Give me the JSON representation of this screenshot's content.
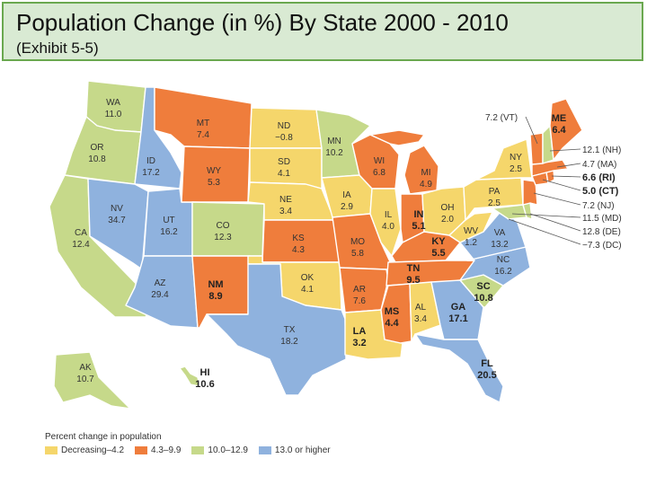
{
  "title": "Population Change (in %) By State 2000 - 2010",
  "subtitle": "(Exhibit 5-5)",
  "colors": {
    "decreasing": "#f5d66b",
    "mid": "#ef7d3c",
    "high": "#c6d98a",
    "top": "#8fb2de",
    "border": "#6aa84f",
    "title_bg": "#d9ead3"
  },
  "legend": {
    "title": "Percent change in population",
    "items": [
      {
        "label": "Decreasing–4.2",
        "color": "#f5d66b"
      },
      {
        "label": "4.3–9.9",
        "color": "#ef7d3c"
      },
      {
        "label": "10.0–12.9",
        "color": "#c6d98a"
      },
      {
        "label": "13.0 or higher",
        "color": "#8fb2de"
      }
    ]
  },
  "states": [
    {
      "code": "WA",
      "value": "11.0",
      "cat": "high"
    },
    {
      "code": "OR",
      "value": "10.8",
      "cat": "high"
    },
    {
      "code": "CA",
      "value": "12.4",
      "cat": "high"
    },
    {
      "code": "ID",
      "value": "17.2",
      "cat": "top"
    },
    {
      "code": "NV",
      "value": "34.7",
      "cat": "top"
    },
    {
      "code": "UT",
      "value": "16.2",
      "cat": "top"
    },
    {
      "code": "AZ",
      "value": "29.4",
      "cat": "top"
    },
    {
      "code": "MT",
      "value": "7.4",
      "cat": "mid"
    },
    {
      "code": "WY",
      "value": "5.3",
      "cat": "mid"
    },
    {
      "code": "CO",
      "value": "12.3",
      "cat": "high"
    },
    {
      "code": "NM",
      "value": "8.9",
      "cat": "mid"
    },
    {
      "code": "ND",
      "value": "−0.8",
      "cat": "decreasing"
    },
    {
      "code": "SD",
      "value": "4.1",
      "cat": "decreasing"
    },
    {
      "code": "NE",
      "value": "3.4",
      "cat": "decreasing"
    },
    {
      "code": "KS",
      "value": "4.3",
      "cat": "mid"
    },
    {
      "code": "OK",
      "value": "4.1",
      "cat": "decreasing"
    },
    {
      "code": "TX",
      "value": "18.2",
      "cat": "top"
    },
    {
      "code": "MN",
      "value": "10.2",
      "cat": "high"
    },
    {
      "code": "IA",
      "value": "2.9",
      "cat": "decreasing"
    },
    {
      "code": "MO",
      "value": "5.8",
      "cat": "mid"
    },
    {
      "code": "AR",
      "value": "7.6",
      "cat": "mid"
    },
    {
      "code": "LA",
      "value": "3.2",
      "cat": "decreasing"
    },
    {
      "code": "WI",
      "value": "6.8",
      "cat": "mid"
    },
    {
      "code": "IL",
      "value": "4.0",
      "cat": "decreasing"
    },
    {
      "code": "MI",
      "value": "4.9",
      "cat": "mid"
    },
    {
      "code": "IN",
      "value": "5.1",
      "cat": "mid"
    },
    {
      "code": "OH",
      "value": "2.0",
      "cat": "decreasing"
    },
    {
      "code": "KY",
      "value": "5.5",
      "cat": "mid"
    },
    {
      "code": "TN",
      "value": "9.5",
      "cat": "mid"
    },
    {
      "code": "MS",
      "value": "4.4",
      "cat": "mid"
    },
    {
      "code": "AL",
      "value": "3.4",
      "cat": "decreasing"
    },
    {
      "code": "GA",
      "value": "17.1",
      "cat": "top"
    },
    {
      "code": "FL",
      "value": "20.5",
      "cat": "top"
    },
    {
      "code": "SC",
      "value": "10.8",
      "cat": "high"
    },
    {
      "code": "NC",
      "value": "16.2",
      "cat": "top"
    },
    {
      "code": "VA",
      "value": "13.2",
      "cat": "top"
    },
    {
      "code": "WV",
      "value": "1.2",
      "cat": "decreasing"
    },
    {
      "code": "PA",
      "value": "2.5",
      "cat": "decreasing"
    },
    {
      "code": "NY",
      "value": "2.5",
      "cat": "decreasing"
    },
    {
      "code": "ME",
      "value": "6.4",
      "cat": "mid"
    },
    {
      "code": "AK",
      "value": "10.7",
      "cat": "high"
    },
    {
      "code": "HI",
      "value": "10.6",
      "cat": "high"
    }
  ],
  "callouts": [
    {
      "text": "7.2 (VT)"
    },
    {
      "text": "12.1 (NH)"
    },
    {
      "text": "4.7 (MA)"
    },
    {
      "text": "6.6 (RI)"
    },
    {
      "text": "5.0 (CT)"
    },
    {
      "text": "7.2 (NJ)"
    },
    {
      "text": "11.5 (MD)"
    },
    {
      "text": "12.8 (DE)"
    },
    {
      "text": "−7.3 (DC)"
    }
  ]
}
